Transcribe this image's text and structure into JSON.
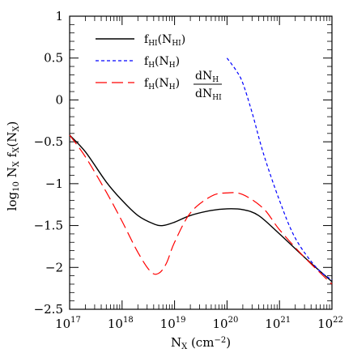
{
  "chart_data": {
    "type": "line",
    "xlabel": "N_X (cm^-2)",
    "ylabel": "log10 N_X f_X(N_X)",
    "x_scale": "log",
    "xlim": [
      1e+17,
      1e+22
    ],
    "ylim": [
      -2.5,
      1
    ],
    "x_ticks": [
      {
        "value": 1e+17,
        "base": "10",
        "exp": "17"
      },
      {
        "value": 1e+18,
        "base": "10",
        "exp": "18"
      },
      {
        "value": 1e+19,
        "base": "10",
        "exp": "19"
      },
      {
        "value": 1e+20,
        "base": "10",
        "exp": "20"
      },
      {
        "value": 1e+21,
        "base": "10",
        "exp": "21"
      },
      {
        "value": 1e+22,
        "base": "10",
        "exp": "22"
      }
    ],
    "y_ticks": [
      {
        "value": 1,
        "label": "1"
      },
      {
        "value": 0.5,
        "label": "0.5"
      },
      {
        "value": 0,
        "label": "0"
      },
      {
        "value": -0.5,
        "label": "−0.5"
      },
      {
        "value": -1,
        "label": "−1"
      },
      {
        "value": -1.5,
        "label": "−1.5"
      },
      {
        "value": -2,
        "label": "−2"
      },
      {
        "value": -2.5,
        "label": "−2.5"
      }
    ],
    "legend_position": "top-left",
    "series": [
      {
        "name": "f_HI(N_HI)",
        "color": "#000000",
        "dash": "solid",
        "points": [
          [
            1e+17,
            -0.42
          ],
          [
            2e+17,
            -0.62
          ],
          [
            5e+17,
            -0.98
          ],
          [
            1e+18,
            -1.2
          ],
          [
            2e+18,
            -1.38
          ],
          [
            4e+18,
            -1.48
          ],
          [
            6e+18,
            -1.5
          ],
          [
            1e+19,
            -1.46
          ],
          [
            2e+19,
            -1.38
          ],
          [
            5e+19,
            -1.32
          ],
          [
            1e+20,
            -1.3
          ],
          [
            2e+20,
            -1.31
          ],
          [
            4e+20,
            -1.38
          ],
          [
            1e+21,
            -1.6
          ],
          [
            3e+21,
            -1.88
          ],
          [
            1e+22,
            -2.17
          ]
        ]
      },
      {
        "name": "f_H(N_H)",
        "color": "#0000ff",
        "dash": "dashed",
        "points": [
          [
            1e+20,
            0.5
          ],
          [
            1.5e+20,
            0.35
          ],
          [
            2e+20,
            0.2
          ],
          [
            3e+20,
            -0.15
          ],
          [
            5e+20,
            -0.65
          ],
          [
            1e+21,
            -1.2
          ],
          [
            2e+21,
            -1.65
          ],
          [
            5e+21,
            -2.0
          ],
          [
            1e+22,
            -2.15
          ]
        ]
      },
      {
        "name": "f_H(N_H) dN_H/dN_HI",
        "color": "#ff0000",
        "dash": "long-dashed",
        "points": [
          [
            1e+17,
            -0.42
          ],
          [
            2e+17,
            -0.68
          ],
          [
            5e+17,
            -1.1
          ],
          [
            1e+18,
            -1.45
          ],
          [
            2e+18,
            -1.82
          ],
          [
            3.5e+18,
            -2.05
          ],
          [
            5e+18,
            -2.07
          ],
          [
            7e+18,
            -1.95
          ],
          [
            1e+19,
            -1.7
          ],
          [
            2e+19,
            -1.35
          ],
          [
            5e+19,
            -1.15
          ],
          [
            1e+20,
            -1.11
          ],
          [
            2e+20,
            -1.13
          ],
          [
            5e+20,
            -1.3
          ],
          [
            1e+21,
            -1.55
          ],
          [
            3e+21,
            -1.88
          ],
          [
            1e+22,
            -2.2
          ]
        ]
      }
    ]
  },
  "legend": {
    "entry1": {
      "f": "f",
      "sub_f": "HI",
      "open": "(N",
      "sub_n": "HI",
      "close": ")"
    },
    "entry2": {
      "f": "f",
      "sub_f": "H",
      "open": "(N",
      "sub_n": "H",
      "close": ")"
    },
    "entry3": {
      "f": "f",
      "sub_f": "H",
      "open": "(N",
      "sub_n": "H",
      "close": ")",
      "num": "dN",
      "num_sub": "H",
      "den": "dN",
      "den_sub": "HI"
    }
  },
  "axis_titles": {
    "x": {
      "base": "N",
      "sub": "X",
      "unit_open": " (cm",
      "unit_exp": "−2",
      "unit_close": ")"
    },
    "y": {
      "log": "log",
      "log_sub": "10",
      "n": " N",
      "n_sub": "X",
      "f": " f",
      "f_sub": "X",
      "arg": "(N",
      "arg_sub": "X",
      "arg_close": ")"
    }
  }
}
